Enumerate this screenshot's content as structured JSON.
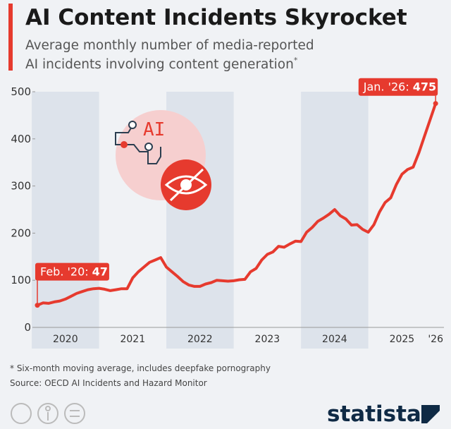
{
  "chart_data": {
    "type": "line",
    "title": "AI Content Incidents Skyrocket",
    "subtitle": [
      "Average monthly number of media-reported",
      "AI incidents involving content generation"
    ],
    "subtitle_marker": "*",
    "categories": [
      null,
      null,
      null,
      null,
      null,
      "2020",
      null,
      null,
      null,
      null,
      null,
      null,
      null,
      null,
      null,
      null,
      null,
      "2021",
      null,
      null,
      null,
      null,
      null,
      null,
      null,
      null,
      null,
      null,
      null,
      "2022",
      null,
      null,
      null,
      null,
      null,
      null,
      null,
      null,
      null,
      null,
      null,
      "2023",
      null,
      null,
      null,
      null,
      null,
      null,
      null,
      null,
      null,
      null,
      null,
      "2024",
      null,
      null,
      null,
      null,
      null,
      null,
      null,
      null,
      null,
      null,
      null,
      "2025",
      null,
      null,
      null,
      null,
      null,
      "'26"
    ],
    "series": [
      {
        "name": "AI content incidents",
        "color": "#e63a2e",
        "values": [
          47,
          52,
          51,
          54,
          56,
          60,
          66,
          72,
          76,
          80,
          82,
          83,
          81,
          78,
          80,
          82,
          82,
          105,
          118,
          128,
          138,
          143,
          148,
          128,
          118,
          108,
          97,
          90,
          87,
          87,
          92,
          95,
          100,
          99,
          98,
          99,
          101,
          102,
          118,
          125,
          143,
          155,
          160,
          172,
          170,
          177,
          183,
          182,
          202,
          212,
          225,
          232,
          240,
          250,
          237,
          230,
          217,
          218,
          208,
          202,
          218,
          245,
          265,
          275,
          303,
          325,
          335,
          340,
          370,
          405,
          440,
          475
        ]
      }
    ],
    "annotations": [
      {
        "text": "Feb. '20:"
      },
      {
        "text": "Jan. '26:"
      }
    ],
    "ylim": [
      0,
      500
    ],
    "yticks": [
      0,
      100,
      200,
      300,
      400,
      500
    ],
    "grid": false,
    "illustration_text": "AI",
    "footnote": "* Six-month moving average, includes deepfake pornography",
    "source": "Source: OECD AI Incidents and Hazard Monitor",
    "brand": "statista"
  }
}
